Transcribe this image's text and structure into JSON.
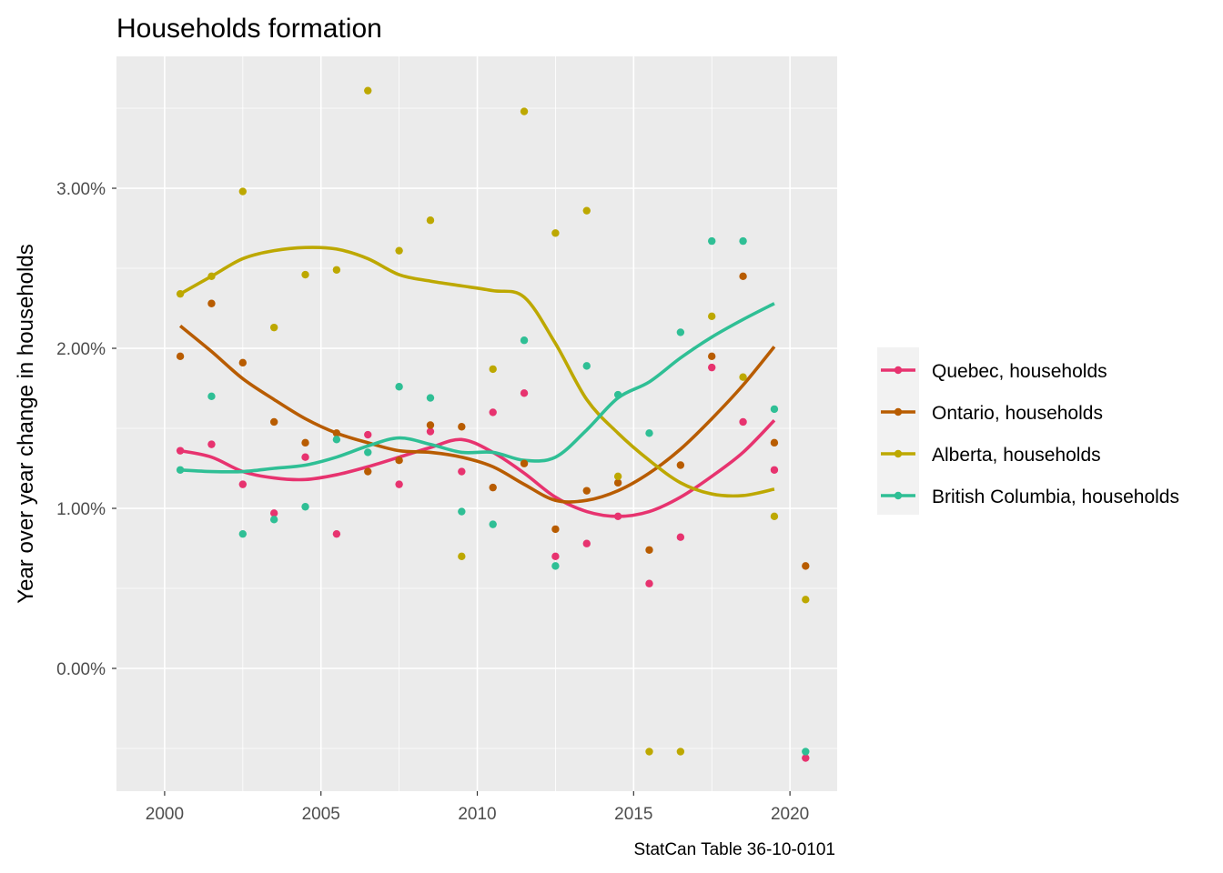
{
  "chart_data": {
    "type": "scatter",
    "title": "Households formation",
    "xlabel": "",
    "ylabel": "Year over year change in households",
    "caption": "StatCan Table 36-10-0101",
    "xlim": [
      1998.46,
      2021.51
    ],
    "ylim": [
      -0.767,
      3.824
    ],
    "x_ticks": [
      2000,
      2005,
      2010,
      2015,
      2020
    ],
    "x_tick_labels": [
      "2000",
      "2005",
      "2010",
      "2015",
      "2020"
    ],
    "y_ticks": [
      0,
      1,
      2,
      3
    ],
    "y_tick_labels": [
      "0.00%",
      "1.00%",
      "2.00%",
      "3.00%"
    ],
    "grid": true,
    "legend_position": "right",
    "x": [
      2000.5,
      2001.5,
      2002.5,
      2003.5,
      2004.5,
      2005.5,
      2006.5,
      2007.5,
      2008.5,
      2009.5,
      2010.5,
      2011.5,
      2012.5,
      2013.5,
      2014.5,
      2015.5,
      2016.5,
      2017.5,
      2018.5,
      2019.5,
      2020.5
    ],
    "smooth_x": [
      2000.5,
      2001.5,
      2002.5,
      2003.5,
      2004.5,
      2005.5,
      2006.5,
      2007.5,
      2008.5,
      2009.5,
      2010.5,
      2011.5,
      2012.5,
      2013.5,
      2014.5,
      2015.5,
      2016.5,
      2017.5,
      2018.5,
      2019.5
    ],
    "series": [
      {
        "name": "Quebec, households",
        "color": "#e7336f",
        "values": [
          1.36,
          1.4,
          1.15,
          0.97,
          1.32,
          0.84,
          1.46,
          1.15,
          1.48,
          1.23,
          1.6,
          1.72,
          0.7,
          0.78,
          0.95,
          0.53,
          0.82,
          1.88,
          1.54,
          1.24,
          -0.56
        ],
        "smooth": [
          1.36,
          1.32,
          1.23,
          1.19,
          1.18,
          1.21,
          1.26,
          1.32,
          1.38,
          1.43,
          1.35,
          1.22,
          1.07,
          0.98,
          0.95,
          0.98,
          1.07,
          1.2,
          1.35,
          1.55
        ]
      },
      {
        "name": "Ontario, households",
        "color": "#b85c00",
        "values": [
          1.95,
          2.28,
          1.91,
          1.54,
          1.41,
          1.47,
          1.23,
          1.3,
          1.52,
          1.51,
          1.13,
          1.28,
          0.87,
          1.11,
          1.16,
          0.74,
          1.27,
          1.95,
          2.45,
          1.41,
          0.64
        ],
        "smooth": [
          2.14,
          1.98,
          1.81,
          1.68,
          1.56,
          1.47,
          1.41,
          1.36,
          1.35,
          1.32,
          1.26,
          1.15,
          1.05,
          1.05,
          1.11,
          1.22,
          1.37,
          1.56,
          1.77,
          2.01
        ]
      },
      {
        "name": "Alberta, households",
        "color": "#bda800",
        "values": [
          2.34,
          2.45,
          2.98,
          2.13,
          2.46,
          2.49,
          3.61,
          2.61,
          2.8,
          0.7,
          1.87,
          3.48,
          2.72,
          2.86,
          1.2,
          -0.52,
          -0.52,
          2.2,
          1.82,
          0.95,
          0.43
        ],
        "smooth": [
          2.34,
          2.45,
          2.56,
          2.61,
          2.63,
          2.62,
          2.56,
          2.46,
          2.42,
          2.39,
          2.36,
          2.32,
          2.03,
          1.68,
          1.47,
          1.3,
          1.16,
          1.09,
          1.08,
          1.12
        ]
      },
      {
        "name": "British Columbia, households",
        "color": "#2fbf95",
        "values": [
          1.24,
          1.7,
          0.84,
          0.93,
          1.01,
          1.43,
          1.35,
          1.76,
          1.69,
          0.98,
          0.9,
          2.05,
          0.64,
          1.89,
          1.71,
          1.47,
          2.1,
          2.67,
          2.67,
          1.62,
          -0.52
        ],
        "smooth": [
          1.24,
          1.23,
          1.23,
          1.25,
          1.27,
          1.32,
          1.39,
          1.44,
          1.4,
          1.35,
          1.35,
          1.3,
          1.32,
          1.49,
          1.69,
          1.79,
          1.94,
          2.07,
          2.18,
          2.28
        ]
      }
    ]
  }
}
